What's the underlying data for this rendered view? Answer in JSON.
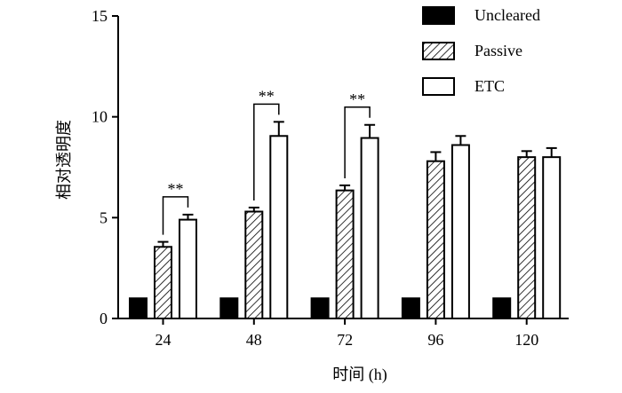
{
  "chart_data": {
    "type": "bar",
    "title": "",
    "xlabel": "时间 (h)",
    "ylabel": "相对透明度",
    "categories": [
      "24",
      "48",
      "72",
      "96",
      "120"
    ],
    "ylim": [
      0,
      15
    ],
    "yticks": [
      0,
      5,
      10,
      15
    ],
    "grid": false,
    "legend_position": "top-right",
    "series": [
      {
        "name": "Uncleared",
        "fill": "solid-black",
        "values": [
          1,
          1,
          1,
          1,
          1
        ],
        "errors": [
          0,
          0,
          0,
          0,
          0
        ]
      },
      {
        "name": "Passive",
        "fill": "hatched",
        "values": [
          3.55,
          5.3,
          6.35,
          7.8,
          8.0
        ],
        "errors": [
          0.25,
          0.2,
          0.25,
          0.45,
          0.3
        ]
      },
      {
        "name": "ETC",
        "fill": "white",
        "values": [
          4.9,
          9.05,
          8.95,
          8.6,
          8.0
        ],
        "errors": [
          0.25,
          0.7,
          0.65,
          0.45,
          0.45
        ]
      }
    ],
    "annotations": [
      {
        "category": "24",
        "between": [
          "Passive",
          "ETC"
        ],
        "text": "**"
      },
      {
        "category": "48",
        "between": [
          "Passive",
          "ETC"
        ],
        "text": "**"
      },
      {
        "category": "72",
        "between": [
          "Passive",
          "ETC"
        ],
        "text": "**"
      }
    ]
  }
}
